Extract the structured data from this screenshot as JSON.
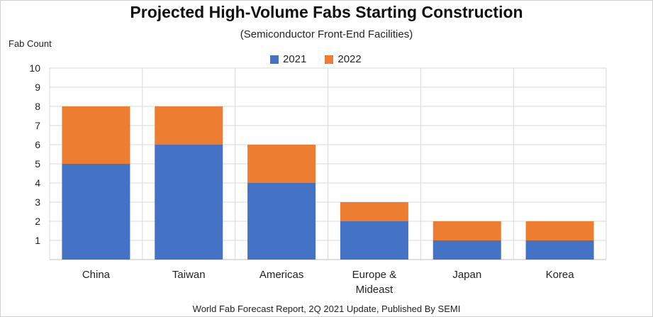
{
  "chart_data": {
    "type": "bar",
    "stacked": true,
    "title": "Projected High-Volume Fabs Starting Construction",
    "subtitle": "(Semiconductor Front-End Facilities)",
    "ylabel": "Fab Count",
    "xlabel": "",
    "categories": [
      [
        "China"
      ],
      [
        "Taiwan"
      ],
      [
        "Americas"
      ],
      [
        "Europe &",
        "Mideast"
      ],
      [
        "Japan"
      ],
      [
        "Korea"
      ]
    ],
    "series": [
      {
        "name": "2021",
        "color": "#4472C4",
        "values": [
          5,
          6,
          4,
          2,
          1,
          1
        ]
      },
      {
        "name": "2022",
        "color": "#ED7D31",
        "values": [
          3,
          2,
          2,
          1,
          1,
          1
        ]
      }
    ],
    "ylim": [
      0,
      10
    ],
    "yticks": [
      "1",
      "2",
      "3",
      "4",
      "5",
      "6",
      "7",
      "8",
      "9",
      "10"
    ],
    "grid": true,
    "legend_position": "top"
  },
  "footer": "World Fab Forecast Report, 2Q 2021 Update, Published By SEMI"
}
